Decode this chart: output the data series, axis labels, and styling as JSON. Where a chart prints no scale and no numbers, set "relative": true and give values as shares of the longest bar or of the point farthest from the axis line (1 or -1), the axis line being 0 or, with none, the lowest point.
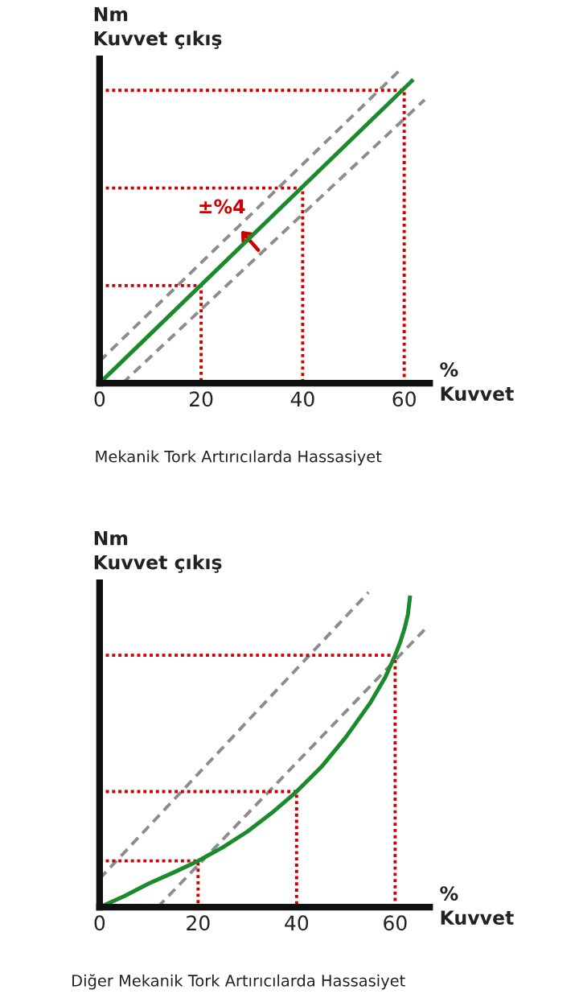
{
  "chart_data": [
    {
      "type": "line",
      "relative": true,
      "xlabel": "%\nKuvvet",
      "ylabel": "Nm\nKuvvet çıkış",
      "xlim": [
        0,
        65
      ],
      "xticks": [
        0,
        20,
        40,
        60
      ],
      "tick_labels": "x",
      "annotations": [
        "±%4",
        "Mekanik Tork Artırıcılarda Hassasiyet"
      ],
      "series": [
        {
          "color": "#8c8c8c",
          "line_style": "dashed",
          "x": [
            0,
            59.5
          ],
          "values": [
            0.07,
            1.0
          ]
        },
        {
          "color": "#8c8c8c",
          "line_style": "dashed",
          "x": [
            4.5,
            64
          ],
          "values": [
            0,
            0.9
          ]
        },
        {
          "color": "#cc0000",
          "line_style": "dotted",
          "x": [
            0,
            20,
            20
          ],
          "values": [
            0.31,
            0.31,
            0
          ]
        },
        {
          "color": "#cc0000",
          "line_style": "dotted",
          "x": [
            0,
            40,
            40
          ],
          "values": [
            0.62,
            0.62,
            0
          ]
        },
        {
          "color": "#cc0000",
          "line_style": "dotted",
          "x": [
            0,
            60,
            60
          ],
          "values": [
            0.93,
            0.93,
            0
          ]
        },
        {
          "color": "#1a8a2a",
          "line_style": "solid",
          "x": [
            0,
            61.5
          ],
          "values": [
            0,
            0.96
          ]
        }
      ]
    },
    {
      "type": "line",
      "relative": true,
      "xlabel": "%\nKuvvet",
      "ylabel": "Nm\nKuvvet çıkış",
      "xlim": [
        0,
        67
      ],
      "xticks": [
        0,
        20,
        40,
        60
      ],
      "tick_labels": "x",
      "annotations": [
        "Diğer Mekanik Tork Artırıcılarda Hassasiyet"
      ],
      "series": [
        {
          "color": "#8c8c8c",
          "line_style": "dashed",
          "x": [
            0,
            54.6
          ],
          "values": [
            0.09,
            1.0
          ]
        },
        {
          "color": "#8c8c8c",
          "line_style": "dashed",
          "x": [
            11.8,
            66.5
          ],
          "values": [
            0,
            0.89
          ]
        },
        {
          "color": "#cc0000",
          "line_style": "dotted",
          "x": [
            0,
            20,
            20
          ],
          "values": [
            0.147,
            0.147,
            0
          ]
        },
        {
          "color": "#cc0000",
          "line_style": "dotted",
          "x": [
            0,
            40,
            40
          ],
          "values": [
            0.367,
            0.367,
            0
          ]
        },
        {
          "color": "#cc0000",
          "line_style": "dotted",
          "x": [
            0,
            60,
            60
          ],
          "values": [
            0.8,
            0.8,
            0
          ]
        },
        {
          "color": "#1a8a2a",
          "line_style": "solid",
          "x": [
            0,
            5,
            10,
            15,
            20,
            25,
            30,
            35,
            40,
            45,
            50,
            55,
            58,
            60,
            61,
            62,
            62.6,
            63
          ],
          "values": [
            0,
            0.035,
            0.075,
            0.11,
            0.147,
            0.19,
            0.24,
            0.3,
            0.367,
            0.445,
            0.54,
            0.65,
            0.73,
            0.8,
            0.84,
            0.89,
            0.93,
            0.983
          ]
        }
      ]
    }
  ]
}
